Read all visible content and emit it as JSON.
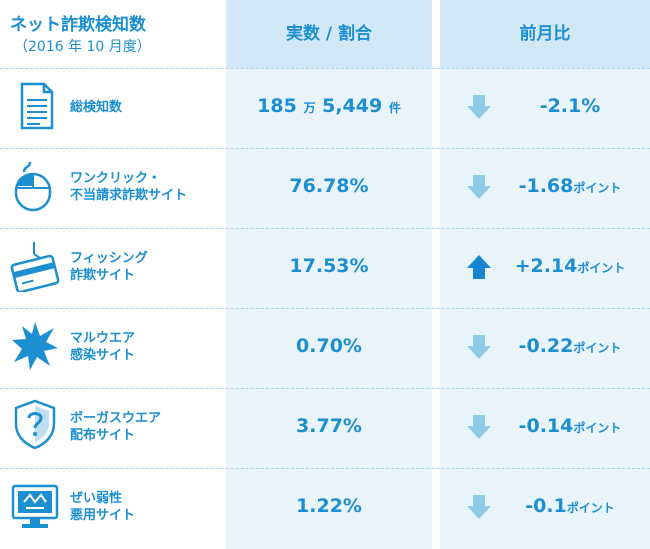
{
  "header": {
    "title": "ネット詐欺検知数",
    "subtitle": "（2016 年 10 月度）",
    "col_value": "実数 / 割合",
    "col_change": "前月比"
  },
  "rows": [
    {
      "icon": "document-icon",
      "label1": "総検知数",
      "label2": "",
      "value_main": "185",
      "value_unit1": "万",
      "value_main2": "5,449",
      "value_unit2": "件",
      "direction": "down",
      "change": "-2.1%",
      "change_unit": ""
    },
    {
      "icon": "mouse-icon",
      "label1": "ワンクリック・",
      "label2": "不当請求詐欺サイト",
      "value_main": "76.78%",
      "value_unit1": "",
      "value_main2": "",
      "value_unit2": "",
      "direction": "down",
      "change": "-1.68",
      "change_unit": "ポイント"
    },
    {
      "icon": "credit-card-icon",
      "label1": "フィッシング",
      "label2": "詐欺サイト",
      "value_main": "17.53%",
      "value_unit1": "",
      "value_main2": "",
      "value_unit2": "",
      "direction": "up",
      "change": "+2.14",
      "change_unit": "ポイント"
    },
    {
      "icon": "burst-icon",
      "label1": "マルウエア",
      "label2": "感染サイト",
      "value_main": "0.70%",
      "value_unit1": "",
      "value_main2": "",
      "value_unit2": "",
      "direction": "down",
      "change": "-0.22",
      "change_unit": "ポイント"
    },
    {
      "icon": "shield-question-icon",
      "label1": "ボーガスウエア",
      "label2": "配布サイト",
      "value_main": "3.77%",
      "value_unit1": "",
      "value_main2": "",
      "value_unit2": "",
      "direction": "down",
      "change": "-0.14",
      "change_unit": "ポイント"
    },
    {
      "icon": "broken-monitor-icon",
      "label1": "ぜい弱性",
      "label2": "悪用サイト",
      "value_main": "1.22%",
      "value_unit1": "",
      "value_main2": "",
      "value_unit2": "",
      "direction": "down",
      "change": "-0.1",
      "change_unit": "ポイント"
    }
  ],
  "colors": {
    "text": "#1c8fd1",
    "arrow_down": "#8fcbe6",
    "arrow_up": "#1786d0",
    "column_bg": "#e9f3fa",
    "header_bg": "#d3e8f6"
  }
}
